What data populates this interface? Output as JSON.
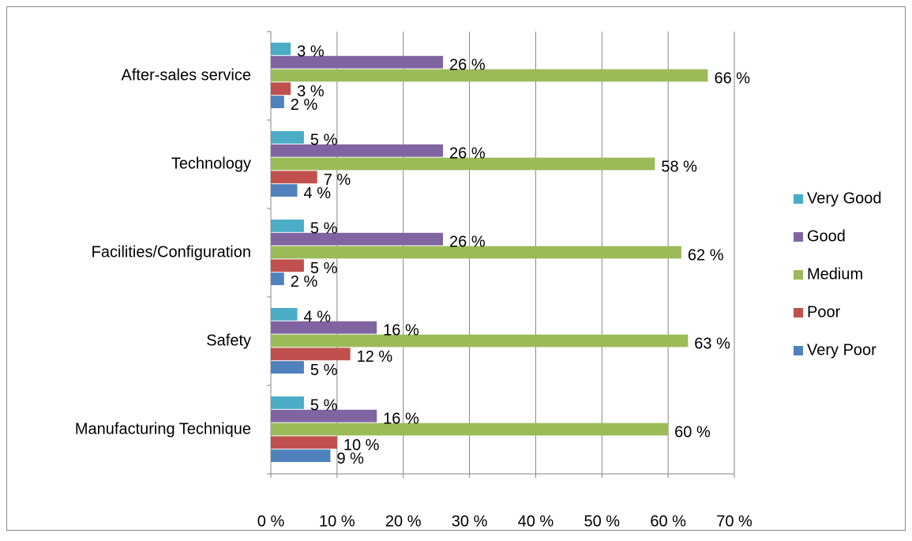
{
  "chart_data": {
    "type": "hbar",
    "categories": [
      "Manufacturing Technique",
      "Safety",
      "Facilities/Configuration",
      "Technology",
      "After-sales service"
    ],
    "series": [
      {
        "name": "Very Poor",
        "color": "#4f81bd",
        "values": [
          9,
          5,
          2,
          4,
          2
        ],
        "value_labels": [
          "9 %",
          "5 %",
          "2 %",
          "4 %",
          "2 %"
        ]
      },
      {
        "name": "Poor",
        "color": "#c0504d",
        "values": [
          10,
          12,
          5,
          7,
          3
        ],
        "value_labels": [
          "10 %",
          "12 %",
          "5 %",
          "7 %",
          "3 %"
        ]
      },
      {
        "name": "Medium",
        "color": "#9bbb59",
        "values": [
          60,
          63,
          62,
          58,
          66
        ],
        "value_labels": [
          "60 %",
          "63 %",
          "62 %",
          "58 %",
          "66 %"
        ]
      },
      {
        "name": "Good",
        "color": "#8064a2",
        "values": [
          16,
          16,
          26,
          26,
          26
        ],
        "value_labels": [
          "16 %",
          "16 %",
          "26 %",
          "26 %",
          "26 %"
        ]
      },
      {
        "name": "Very Good",
        "color": "#4bacc6",
        "values": [
          5,
          4,
          5,
          5,
          3
        ],
        "value_labels": [
          "5 %",
          "4 %",
          "5 %",
          "5 %",
          "3 %"
        ]
      }
    ],
    "xlim": [
      0,
      70
    ],
    "xticks": [
      {
        "value": 0,
        "label": "0 %"
      },
      {
        "value": 10,
        "label": "10 %"
      },
      {
        "value": 20,
        "label": "20 %"
      },
      {
        "value": 30,
        "label": "30 %"
      },
      {
        "value": 40,
        "label": "40 %"
      },
      {
        "value": 50,
        "label": "50 %"
      },
      {
        "value": 60,
        "label": "60 %"
      },
      {
        "value": 70,
        "label": "70 %"
      }
    ],
    "grid": true,
    "legend": "right"
  }
}
